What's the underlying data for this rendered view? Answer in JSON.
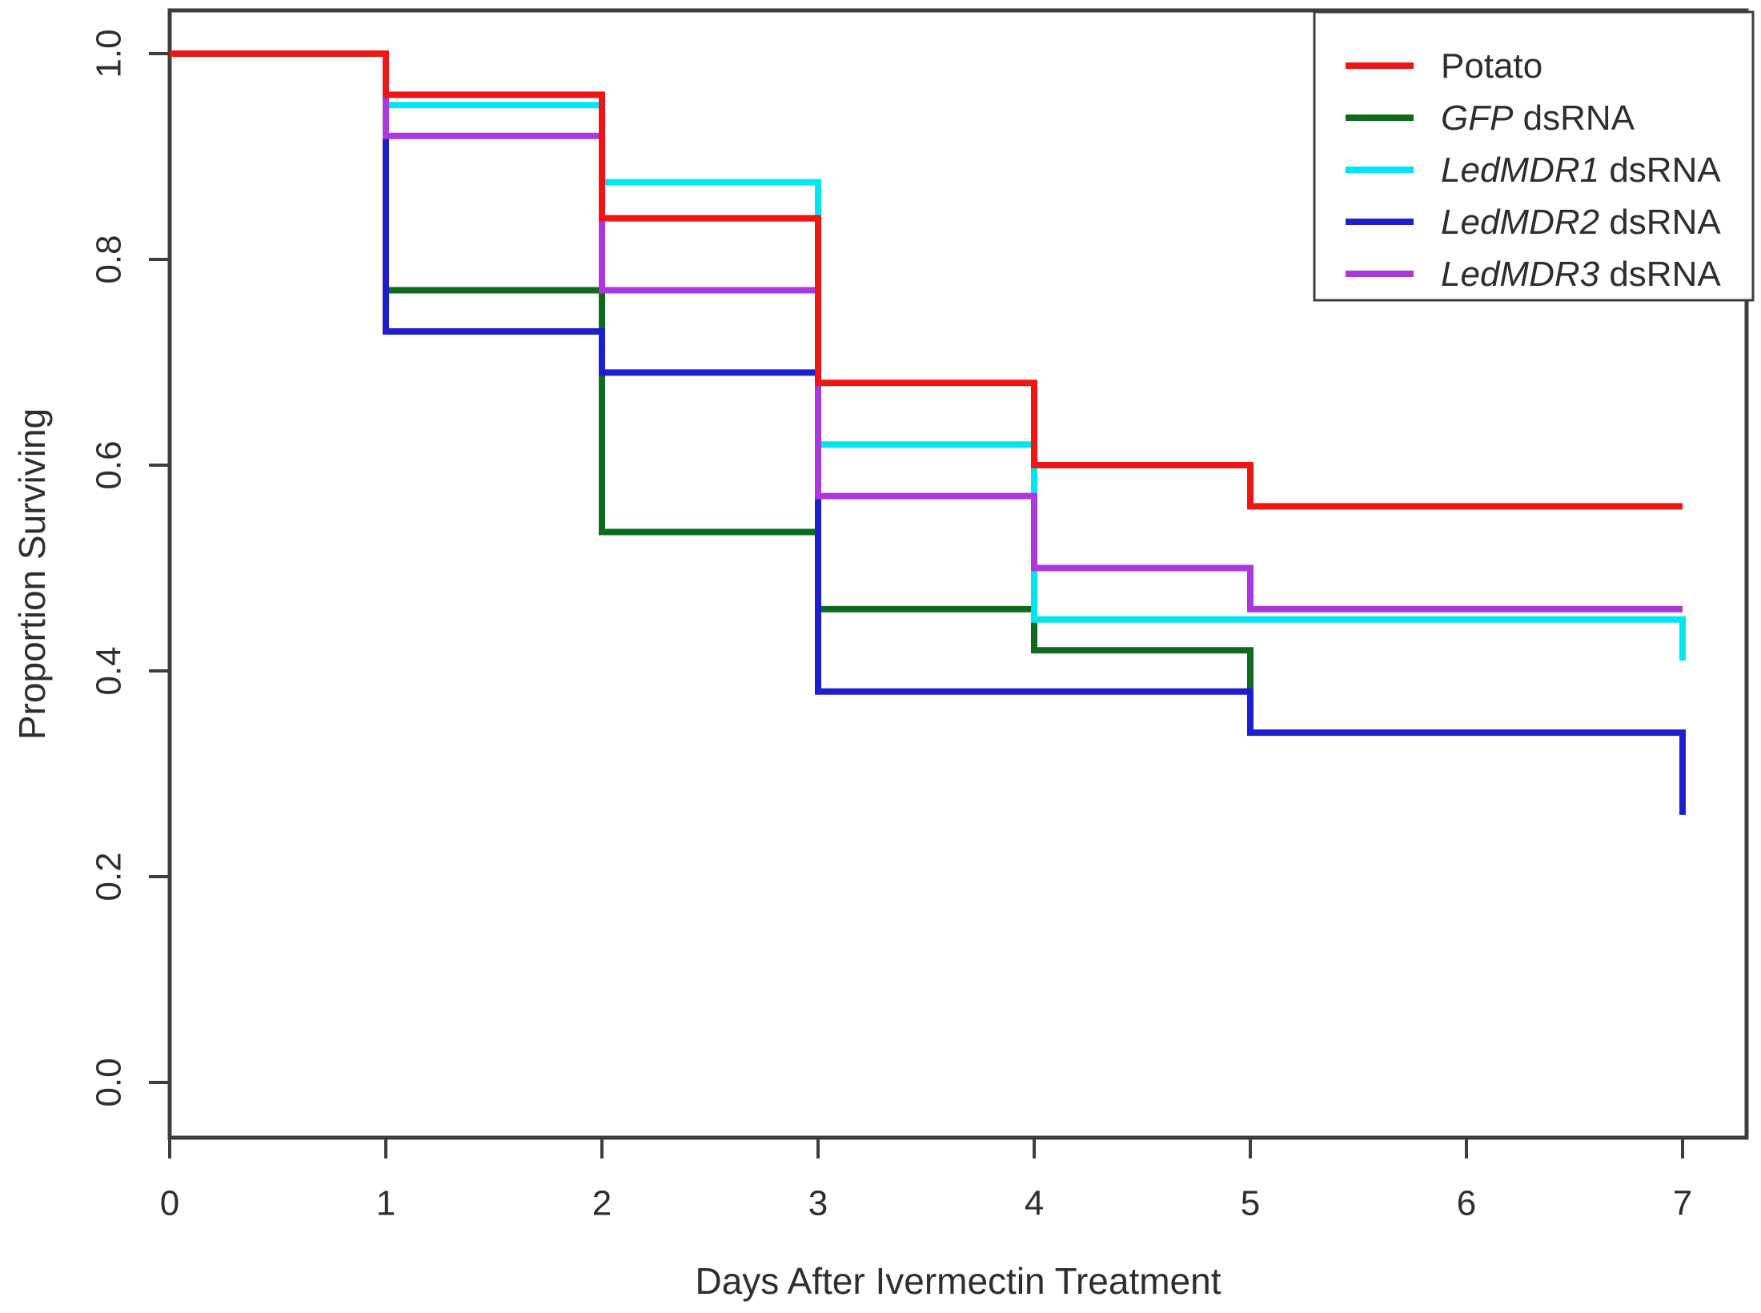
{
  "figure": {
    "background": "#ffffff",
    "axis_color": "#3d3d3d",
    "text_color": "#2e2e2e"
  },
  "chart_data": {
    "type": "line",
    "subtype": "kaplan-meier-step-survival",
    "title": "",
    "xlabel": "Days After Ivermectin Treatment",
    "ylabel": "Proportion Surviving",
    "xlim": [
      0,
      7
    ],
    "ylim": [
      0.0,
      1.0
    ],
    "x_ticks": [
      0,
      1,
      2,
      3,
      4,
      5,
      6,
      7
    ],
    "y_ticks": [
      "0.0",
      "0.2",
      "0.4",
      "0.6",
      "0.8",
      "1.0"
    ],
    "grid": false,
    "legend_position": "top-right",
    "draw_order": [
      1,
      2,
      3,
      4,
      0
    ],
    "series": [
      {
        "id": "potato",
        "label_italic": "",
        "label_rest": "Potato",
        "color": "#f01515",
        "points": [
          [
            0,
            1.0
          ],
          [
            1,
            1.0
          ],
          [
            1,
            0.96
          ],
          [
            2,
            0.96
          ],
          [
            2,
            0.84
          ],
          [
            3,
            0.84
          ],
          [
            3,
            0.68
          ],
          [
            4,
            0.68
          ],
          [
            4,
            0.6
          ],
          [
            5,
            0.6
          ],
          [
            5,
            0.56
          ],
          [
            7,
            0.56
          ]
        ]
      },
      {
        "id": "gfp-dsrna",
        "label_italic": "GFP",
        "label_rest": " dsRNA",
        "color": "#0e6b1e",
        "points": [
          [
            0,
            1.0
          ],
          [
            1,
            1.0
          ],
          [
            1,
            0.77
          ],
          [
            2,
            0.77
          ],
          [
            2,
            0.535
          ],
          [
            3,
            0.535
          ],
          [
            3,
            0.46
          ],
          [
            4,
            0.46
          ],
          [
            4,
            0.42
          ],
          [
            5,
            0.42
          ],
          [
            5,
            0.38
          ]
        ]
      },
      {
        "id": "ledmdr1-dsrna",
        "label_italic": "LedMDR1",
        "label_rest": " dsRNA",
        "color": "#00e6f0",
        "points": [
          [
            0,
            1.0
          ],
          [
            1,
            1.0
          ],
          [
            1,
            0.95
          ],
          [
            2,
            0.95
          ],
          [
            2,
            0.875
          ],
          [
            3,
            0.875
          ],
          [
            3,
            0.62
          ],
          [
            4,
            0.62
          ],
          [
            4,
            0.45
          ],
          [
            7,
            0.45
          ],
          [
            7,
            0.41
          ]
        ]
      },
      {
        "id": "ledmdr2-dsrna",
        "label_italic": "LedMDR2",
        "label_rest": " dsRNA",
        "color": "#1e1ecf",
        "points": [
          [
            0,
            1.0
          ],
          [
            1,
            1.0
          ],
          [
            1,
            0.73
          ],
          [
            2,
            0.73
          ],
          [
            2,
            0.69
          ],
          [
            3,
            0.69
          ],
          [
            3,
            0.38
          ],
          [
            5,
            0.38
          ],
          [
            5,
            0.34
          ],
          [
            7,
            0.34
          ],
          [
            7,
            0.26
          ]
        ]
      },
      {
        "id": "ledmdr3-dsrna",
        "label_italic": "LedMDR3",
        "label_rest": " dsRNA",
        "color": "#aa38dd",
        "points": [
          [
            0,
            1.0
          ],
          [
            1,
            1.0
          ],
          [
            1,
            0.92
          ],
          [
            2,
            0.92
          ],
          [
            2,
            0.77
          ],
          [
            3,
            0.77
          ],
          [
            3,
            0.57
          ],
          [
            4,
            0.57
          ],
          [
            4,
            0.5
          ],
          [
            5,
            0.5
          ],
          [
            5,
            0.46
          ],
          [
            7,
            0.46
          ]
        ]
      }
    ]
  }
}
